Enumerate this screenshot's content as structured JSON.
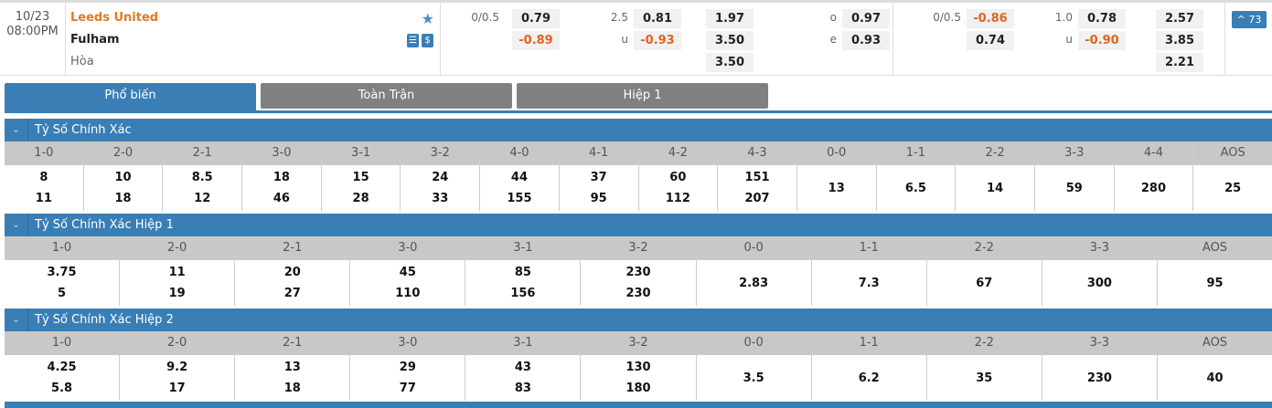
{
  "match": {
    "date": "10/23",
    "time": "08:00PM",
    "home": "Leeds United",
    "away": "Fulham",
    "draw": "Hòa",
    "more_label": "^ 73",
    "full": {
      "hdp_line": "0/0.5",
      "hdp_home": "0.79",
      "hdp_away": "-0.89",
      "ou_line": "2.5",
      "ou_under_label": "u",
      "ou_over": "0.81",
      "ou_under": "-0.93",
      "x1": "1.97",
      "x2": "3.50",
      "xd": "3.50",
      "oe_o_label": "o",
      "oe_e_label": "e",
      "oe_o": "0.97",
      "oe_e": "0.93"
    },
    "half": {
      "hdp_line": "0/0.5",
      "hdp_home": "-0.86",
      "hdp_away": "0.74",
      "ou_line": "1.0",
      "ou_under_label": "u",
      "ou_over": "0.78",
      "ou_under": "-0.90",
      "x1": "2.57",
      "x2": "3.85",
      "xd": "2.21"
    }
  },
  "tabs": [
    {
      "label": "Phổ biến"
    },
    {
      "label": "Toàn Trận"
    },
    {
      "label": "Hiệp 1"
    }
  ],
  "sections": [
    {
      "title": "Tỷ Số Chính Xác",
      "cols": [
        {
          "h": "1-0",
          "a": "8",
          "b": "11"
        },
        {
          "h": "2-0",
          "a": "10",
          "b": "18"
        },
        {
          "h": "2-1",
          "a": "8.5",
          "b": "12"
        },
        {
          "h": "3-0",
          "a": "18",
          "b": "46"
        },
        {
          "h": "3-1",
          "a": "15",
          "b": "28"
        },
        {
          "h": "3-2",
          "a": "24",
          "b": "33"
        },
        {
          "h": "4-0",
          "a": "44",
          "b": "155"
        },
        {
          "h": "4-1",
          "a": "37",
          "b": "95"
        },
        {
          "h": "4-2",
          "a": "60",
          "b": "112"
        },
        {
          "h": "4-3",
          "a": "151",
          "b": "207"
        },
        {
          "h": "0-0",
          "a": "13"
        },
        {
          "h": "1-1",
          "a": "6.5"
        },
        {
          "h": "2-2",
          "a": "14"
        },
        {
          "h": "3-3",
          "a": "59"
        },
        {
          "h": "4-4",
          "a": "280"
        },
        {
          "h": "AOS",
          "a": "25"
        }
      ]
    },
    {
      "title": "Tỷ Số Chính Xác Hiệp 1",
      "cols": [
        {
          "h": "1-0",
          "a": "3.75",
          "b": "5"
        },
        {
          "h": "2-0",
          "a": "11",
          "b": "19"
        },
        {
          "h": "2-1",
          "a": "20",
          "b": "27"
        },
        {
          "h": "3-0",
          "a": "45",
          "b": "110"
        },
        {
          "h": "3-1",
          "a": "85",
          "b": "156"
        },
        {
          "h": "3-2",
          "a": "230",
          "b": "230"
        },
        {
          "h": "0-0",
          "a": "2.83"
        },
        {
          "h": "1-1",
          "a": "7.3"
        },
        {
          "h": "2-2",
          "a": "67"
        },
        {
          "h": "3-3",
          "a": "300"
        },
        {
          "h": "AOS",
          "a": "95"
        }
      ]
    },
    {
      "title": "Tỷ Số Chính Xác Hiệp 2",
      "cols": [
        {
          "h": "1-0",
          "a": "4.25",
          "b": "5.8"
        },
        {
          "h": "2-0",
          "a": "9.2",
          "b": "17"
        },
        {
          "h": "2-1",
          "a": "13",
          "b": "18"
        },
        {
          "h": "3-0",
          "a": "29",
          "b": "77"
        },
        {
          "h": "3-1",
          "a": "43",
          "b": "83"
        },
        {
          "h": "3-2",
          "a": "130",
          "b": "180"
        },
        {
          "h": "0-0",
          "a": "3.5"
        },
        {
          "h": "1-1",
          "a": "6.2"
        },
        {
          "h": "2-2",
          "a": "35"
        },
        {
          "h": "3-3",
          "a": "230"
        },
        {
          "h": "AOS",
          "a": "40"
        }
      ]
    }
  ]
}
